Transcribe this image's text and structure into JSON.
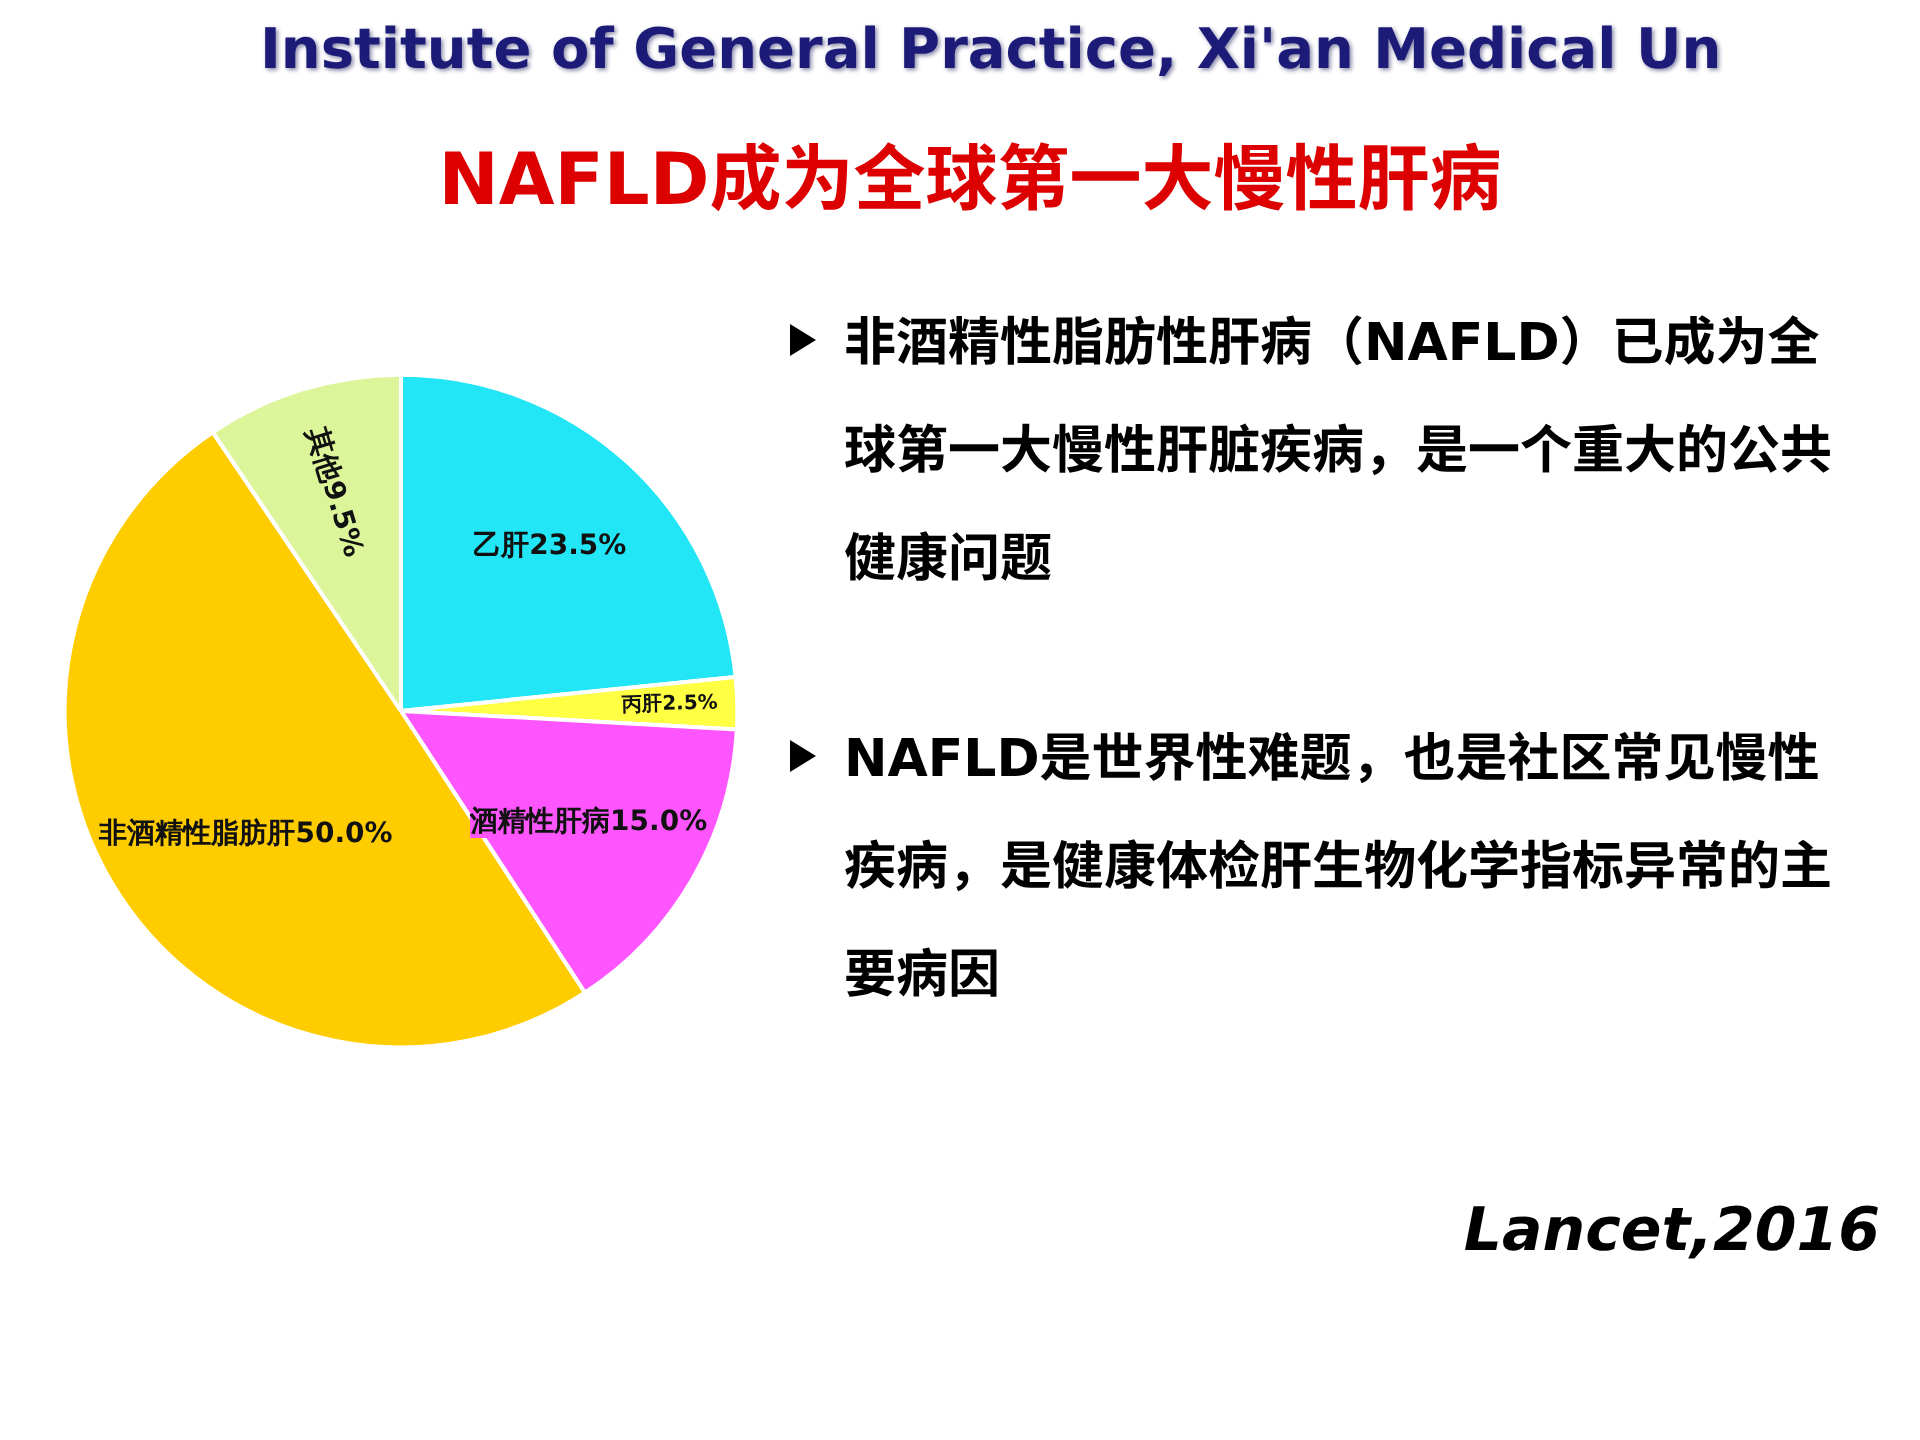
{
  "chart_data": {
    "type": "pie",
    "title": "NAFLD成为全球第一大慢性肝病",
    "subtitle": "Institute of General Practice, Xi'an Medical Un",
    "categories": [
      "乙肝",
      "丙肝",
      "酒精性肝病",
      "非酒精性脂肪肝",
      "其他"
    ],
    "values": [
      23.5,
      2.5,
      15.0,
      50.0,
      9.5
    ],
    "value_labels": [
      "23.5%",
      "2.5%",
      "15.0%",
      "50.0%",
      "9.5%"
    ],
    "colors": [
      "#22e5f5",
      "#ffff44",
      "#ff55ff",
      "#ffcc00",
      "#ddf59a"
    ],
    "annotations": [
      "非酒精性脂肪性肝病（NAFLD）已成为全球第一大慢性肝脏疾病，是一个重大的公共健康问题",
      "NAFLD是世界性难题，也是社区常见慢性疾病，是健康体检肝生物化学指标异常的主要病因",
      "Lancet,2016"
    ]
  }
}
